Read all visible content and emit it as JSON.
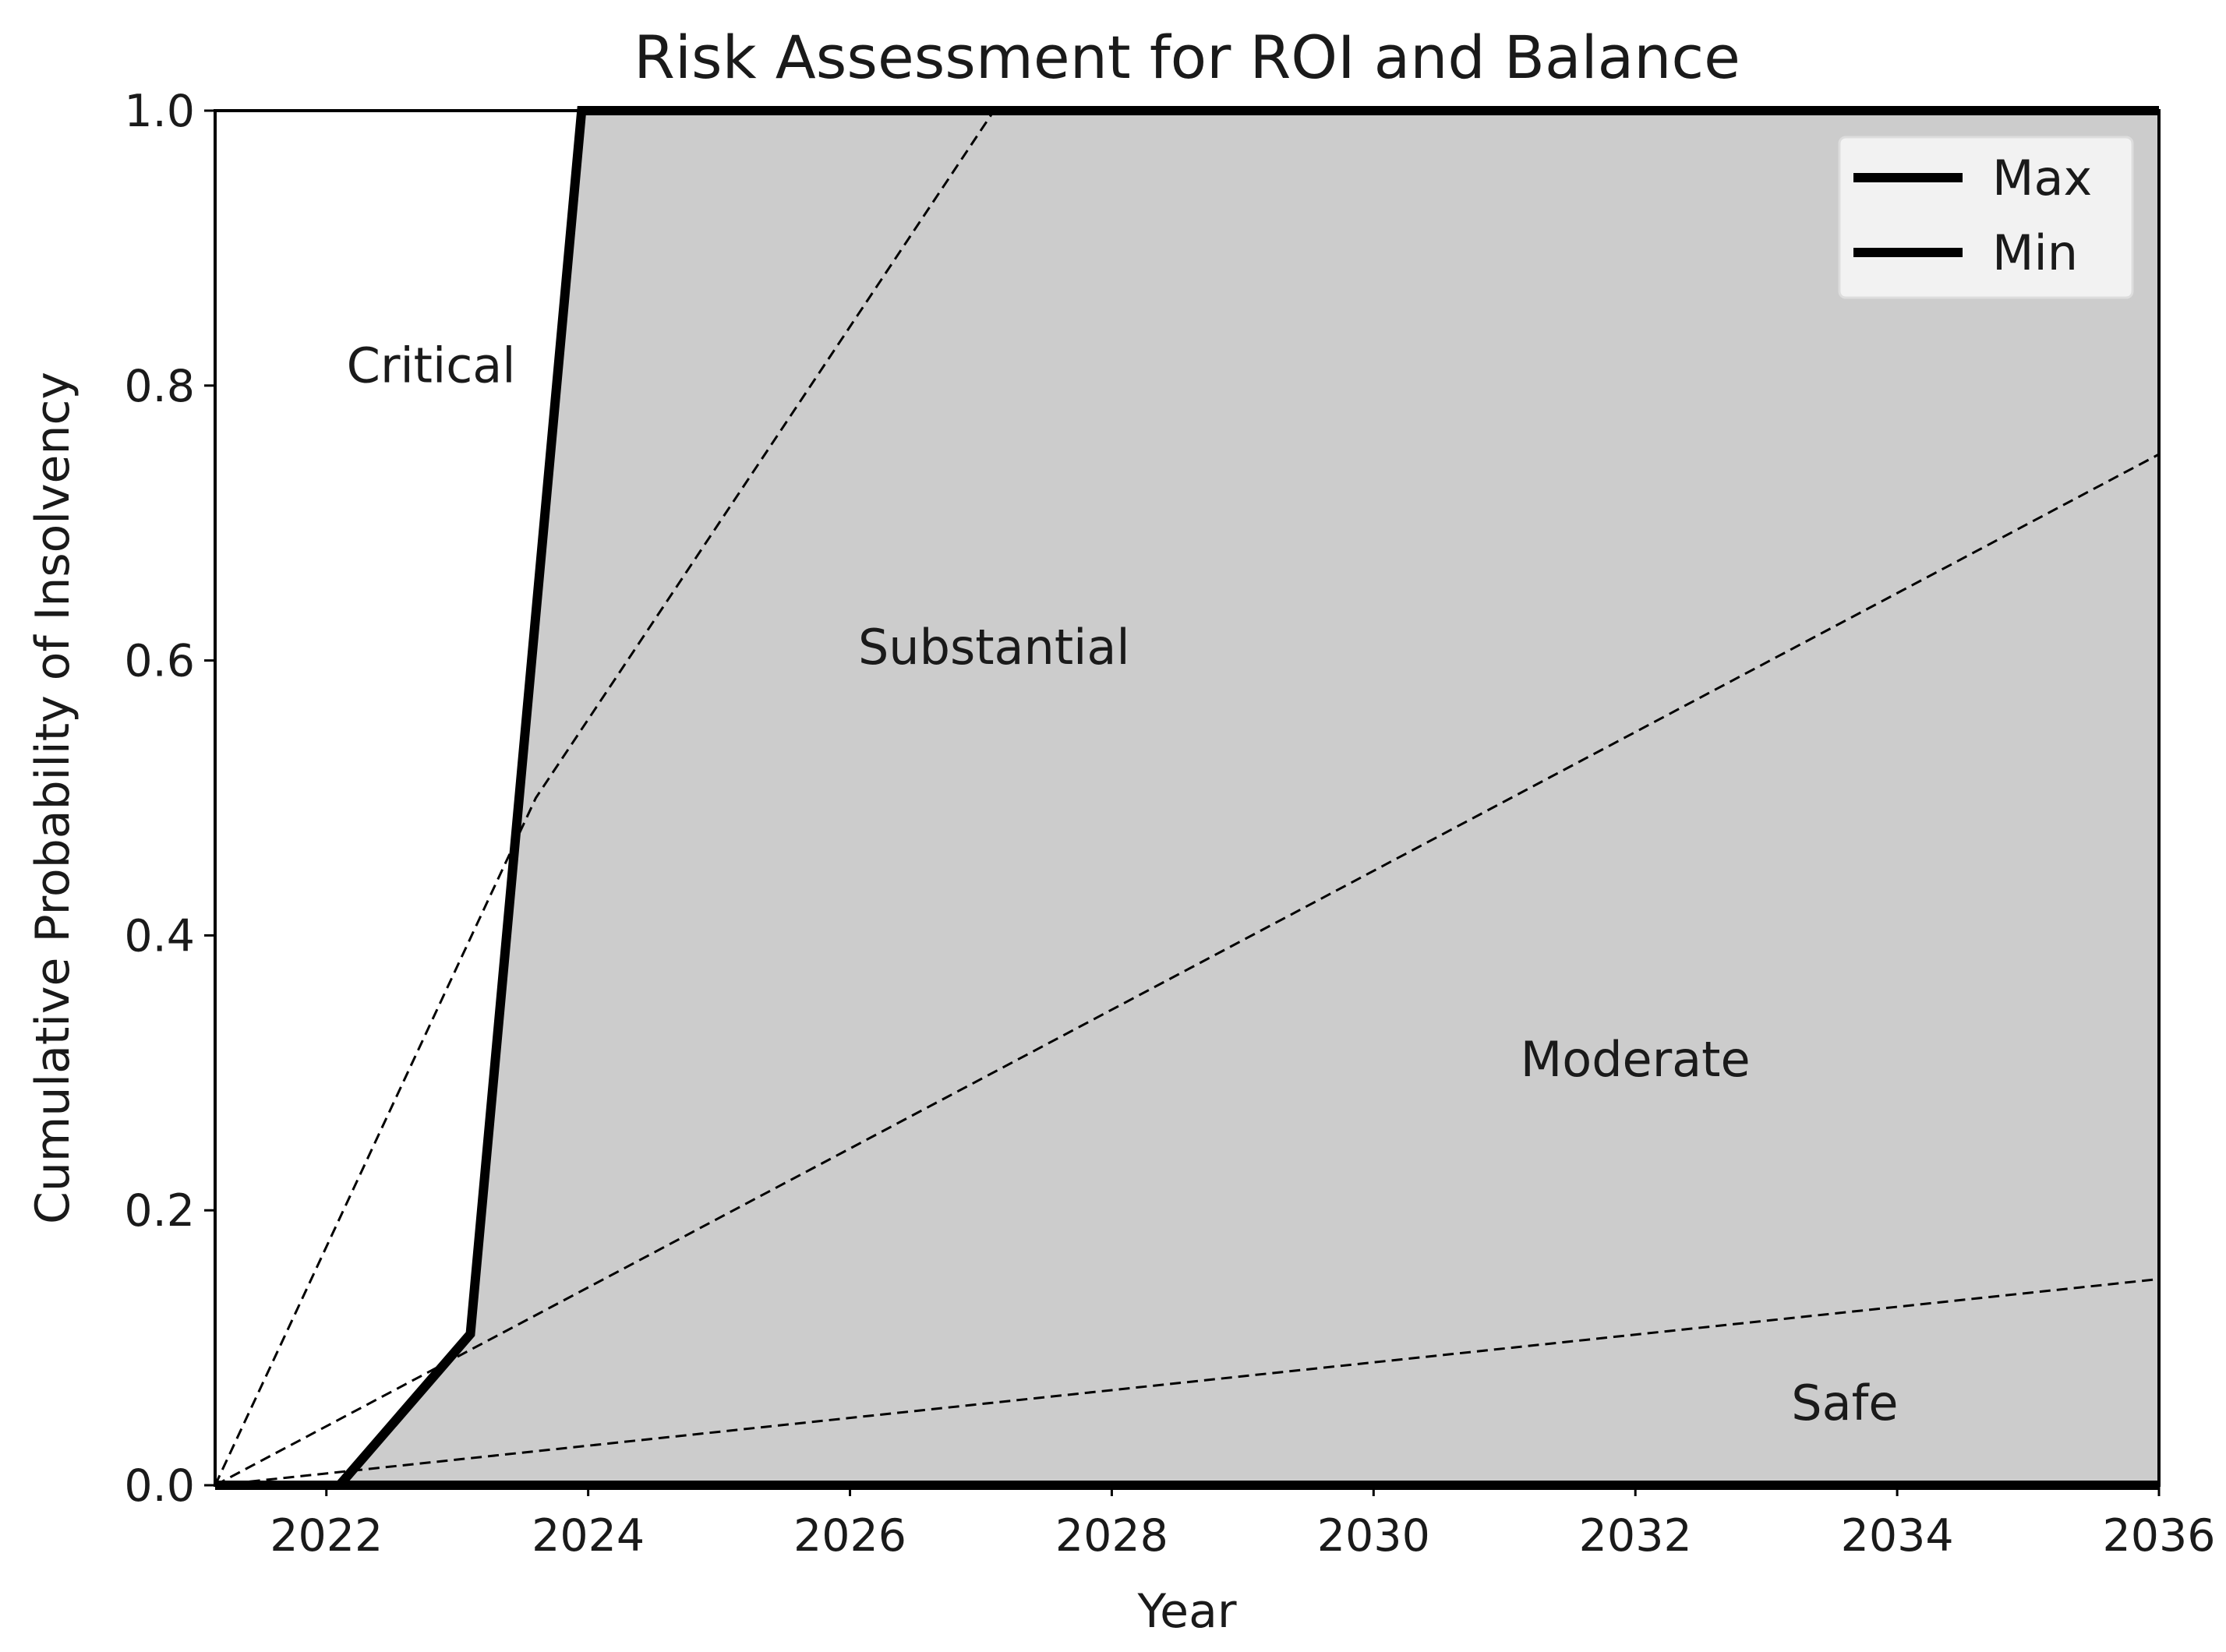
{
  "chart_data": {
    "type": "line",
    "title": "Risk Assessment for ROI and Balance",
    "xlabel": "Year",
    "ylabel": "Cumulative Probability of Insolvency",
    "xlim": [
      2021.15,
      2036
    ],
    "ylim": [
      0.0,
      1.0
    ],
    "xticks": [
      2022,
      2024,
      2026,
      2028,
      2030,
      2032,
      2034,
      2036
    ],
    "yticks": [
      0.0,
      0.2,
      0.4,
      0.6,
      0.8,
      1.0
    ],
    "ytick_labels": [
      "0.0",
      "0.2",
      "0.4",
      "0.6",
      "0.8",
      "1.0"
    ],
    "grid": false,
    "legend_position": "top-right",
    "colors": {
      "band_fill": "#cccccc",
      "line": "#000000",
      "axes_bg": "#ffffff"
    },
    "series": [
      {
        "name": "Max",
        "x": [
          2021.2,
          2022.1,
          2023.1,
          2023.95,
          2036
        ],
        "y": [
          0.0,
          0.0,
          0.11,
          1.0,
          1.0
        ]
      },
      {
        "name": "Min",
        "x": [
          2021.15,
          2036
        ],
        "y": [
          0.0,
          0.0
        ]
      }
    ],
    "reference_lines": [
      {
        "x": [
          2021.15,
          2023.6,
          2027.1
        ],
        "y": [
          0.0,
          0.5,
          1.0
        ]
      },
      {
        "x": [
          2021.15,
          2036
        ],
        "y": [
          0.0,
          0.75
        ]
      },
      {
        "x": [
          2021.15,
          2036
        ],
        "y": [
          0.0,
          0.15
        ]
      }
    ],
    "annotations": [
      {
        "text": "Critical",
        "x": 2022.8,
        "y": 0.815
      },
      {
        "text": "Substantial",
        "x": 2027.1,
        "y": 0.61
      },
      {
        "text": "Moderate",
        "x": 2032.0,
        "y": 0.31
      },
      {
        "text": "Safe",
        "x": 2033.6,
        "y": 0.06
      }
    ]
  }
}
